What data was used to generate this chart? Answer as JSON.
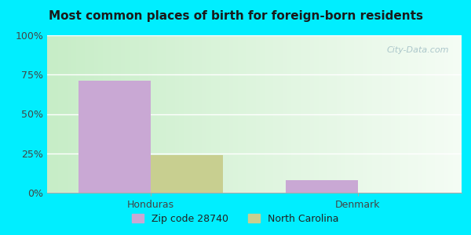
{
  "title": "Most common places of birth for foreign-born residents",
  "categories": [
    "Honduras",
    "Denmark"
  ],
  "zip_values": [
    71,
    8
  ],
  "nc_values": [
    24,
    0
  ],
  "zip_color": "#c9a8d4",
  "nc_color": "#c8cf90",
  "bar_width": 0.35,
  "ylim": [
    0,
    100
  ],
  "yticks": [
    0,
    25,
    50,
    75,
    100
  ],
  "ytick_labels": [
    "0%",
    "25%",
    "50%",
    "75%",
    "100%"
  ],
  "legend_zip_label": "Zip code 28740",
  "legend_nc_label": "North Carolina",
  "bg_outer": "#00eeff",
  "title_fontsize": 11,
  "axis_label_fontsize": 9,
  "watermark": "City-Data.com",
  "grad_left": "#c8e6c8",
  "grad_right": "#f0faf0"
}
